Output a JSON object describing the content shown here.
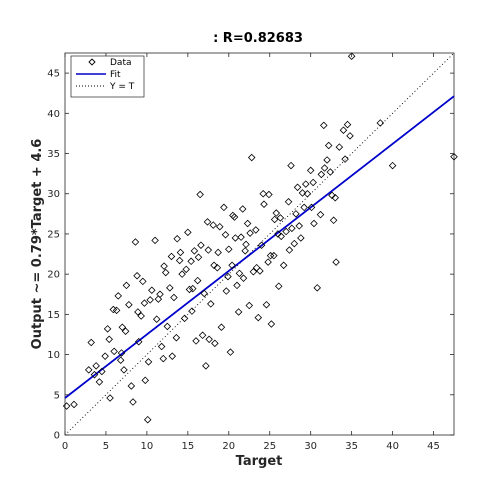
{
  "chart_data": {
    "type": "scatter",
    "title": ": R=0.82683",
    "xlabel": "Target",
    "ylabel": "Output ~= 0.79*Target + 4.6",
    "xlim": [
      0,
      47.5
    ],
    "ylim": [
      0,
      47.5
    ],
    "xticks": [
      "0",
      "5",
      "10",
      "15",
      "20",
      "25",
      "30",
      "35",
      "40",
      "45"
    ],
    "yticks": [
      "0",
      "5",
      "10",
      "15",
      "20",
      "25",
      "30",
      "35",
      "40",
      "45"
    ],
    "grid": false,
    "legend_position": "top-left",
    "legend": [
      "Data",
      "Fit",
      "Y = T"
    ],
    "fit": {
      "slope": 0.79,
      "intercept": 4.6,
      "color": "#0000cc"
    },
    "identity_line": {
      "style": "dotted",
      "color": "#000000"
    },
    "series": [
      {
        "name": "Data",
        "marker": "diamond",
        "x": [
          0.2,
          1.1,
          3.2,
          3.8,
          4.2,
          4.5,
          5.2,
          5.5,
          6.0,
          6.3,
          6.8,
          7.0,
          7.2,
          7.5,
          7.8,
          8.1,
          8.3,
          8.8,
          9.0,
          9.3,
          9.8,
          10.1,
          10.2,
          11.0,
          11.4,
          11.8,
          12.0,
          12.1,
          12.5,
          12.8,
          13.1,
          13.3,
          13.6,
          14.0,
          14.3,
          14.6,
          15.0,
          15.2,
          15.5,
          15.8,
          16.0,
          16.2,
          16.5,
          16.8,
          17.0,
          17.2,
          17.5,
          17.8,
          18.1,
          18.3,
          18.6,
          18.9,
          19.1,
          19.4,
          19.7,
          20.0,
          20.2,
          20.4,
          20.7,
          21.0,
          21.2,
          21.5,
          21.8,
          22.0,
          22.3,
          22.5,
          22.8,
          23.0,
          23.3,
          23.6,
          24.0,
          24.3,
          24.6,
          24.9,
          25.2,
          25.5,
          25.8,
          26.1,
          26.4,
          26.7,
          27.0,
          27.3,
          27.6,
          28.0,
          28.4,
          28.8,
          29.2,
          29.6,
          30.0,
          30.4,
          30.8,
          31.2,
          31.6,
          32.0,
          32.4,
          32.8,
          33.0,
          33.5,
          34.0,
          34.2,
          34.5,
          35.0,
          38.5,
          40.0,
          47.5,
          2.9,
          5.9,
          6.5,
          8.6,
          9.5,
          10.6,
          11.6,
          13.7,
          14.8,
          16.3,
          17.6,
          18.7,
          19.9,
          21.3,
          22.6,
          23.8,
          25.1,
          26.3,
          27.7,
          29.0,
          30.3,
          31.7,
          33.1,
          5.4,
          7.4,
          9.7,
          12.3,
          14.1,
          16.6,
          18.2,
          20.5,
          22.1,
          24.2,
          26.0,
          28.2,
          30.1,
          32.2,
          34.8,
          4.9,
          8.9,
          13.0,
          17.4,
          21.7,
          25.6,
          29.4,
          6.9,
          11.2,
          15.6,
          19.6,
          23.4,
          27.4,
          31.3,
          3.6,
          10.4,
          15.4,
          20.8,
          24.8,
          28.6,
          32.6
        ],
        "y": [
          3.6,
          3.8,
          11.5,
          8.6,
          6.6,
          7.9,
          13.2,
          4.6,
          10.4,
          15.5,
          9.3,
          13.4,
          8.1,
          18.6,
          16.2,
          6.1,
          4.1,
          19.8,
          11.6,
          14.8,
          6.8,
          1.9,
          9.1,
          24.2,
          16.9,
          11.0,
          9.5,
          21.0,
          13.5,
          18.3,
          9.8,
          17.1,
          12.1,
          21.7,
          20.0,
          14.5,
          25.2,
          18.1,
          15.4,
          22.9,
          11.7,
          19.2,
          29.9,
          12.4,
          17.6,
          8.6,
          23.0,
          16.3,
          26.1,
          11.4,
          20.8,
          25.9,
          13.4,
          28.3,
          17.9,
          23.1,
          10.3,
          21.1,
          27.1,
          18.6,
          15.3,
          24.6,
          19.5,
          22.9,
          26.3,
          16.1,
          34.5,
          20.3,
          25.5,
          14.6,
          23.6,
          28.7,
          16.2,
          29.9,
          13.8,
          22.3,
          27.6,
          18.5,
          24.7,
          21.1,
          25.3,
          29.0,
          33.5,
          23.8,
          30.8,
          24.5,
          28.3,
          30.0,
          32.9,
          26.3,
          18.3,
          27.4,
          38.5,
          34.2,
          32.7,
          26.7,
          29.5,
          35.8,
          37.9,
          34.3,
          38.6,
          47.1,
          38.8,
          33.5,
          34.6,
          8.1,
          15.6,
          17.3,
          24.0,
          19.1,
          18.0,
          17.5,
          24.4,
          20.6,
          22.1,
          11.9,
          22.7,
          19.7,
          20.1,
          25.1,
          20.4,
          22.3,
          27.0,
          25.7,
          30.1,
          31.4,
          33.2,
          21.5,
          11.9,
          12.9,
          16.4,
          20.2,
          22.7,
          23.6,
          21.1,
          27.3,
          23.7,
          30.0,
          25.0,
          27.5,
          28.3,
          36.0,
          37.2,
          9.8,
          15.3,
          22.2,
          26.5,
          28.1,
          26.8,
          31.2,
          10.2,
          14.4,
          18.2,
          24.9,
          20.8,
          23.0,
          32.4,
          7.5,
          16.8,
          21.6,
          24.5,
          21.5,
          26.0,
          29.8
        ]
      }
    ]
  }
}
